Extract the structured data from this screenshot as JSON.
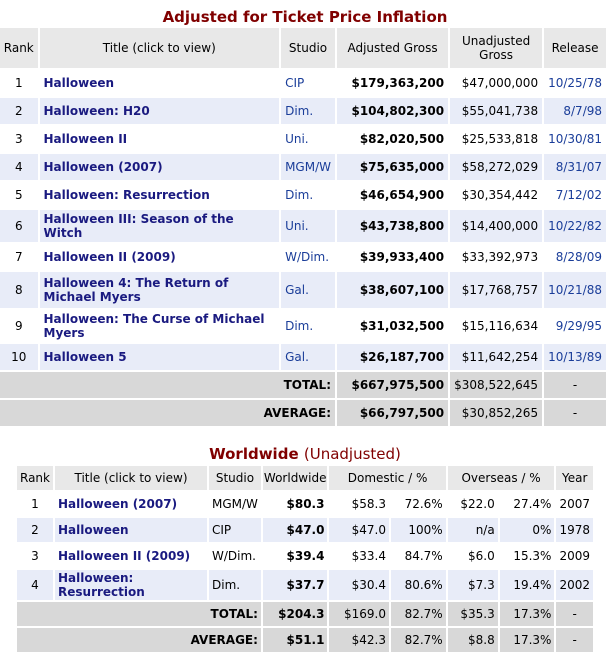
{
  "table1": {
    "title": "Adjusted for Ticket Price Inflation",
    "headers": [
      "Rank",
      "Title (click to view)",
      "Studio",
      "Adjusted Gross",
      "Unadjusted Gross",
      "Release"
    ],
    "rows": [
      {
        "rank": "1",
        "title": "Halloween",
        "studio": "CIP",
        "adjusted": "$179,363,200",
        "unadjusted": "$47,000,000",
        "release": "10/25/78"
      },
      {
        "rank": "2",
        "title": "Halloween: H20",
        "studio": "Dim.",
        "adjusted": "$104,802,300",
        "unadjusted": "$55,041,738",
        "release": "8/7/98"
      },
      {
        "rank": "3",
        "title": "Halloween II",
        "studio": "Uni.",
        "adjusted": "$82,020,500",
        "unadjusted": "$25,533,818",
        "release": "10/30/81"
      },
      {
        "rank": "4",
        "title": "Halloween (2007)",
        "studio": "MGM/W",
        "adjusted": "$75,635,000",
        "unadjusted": "$58,272,029",
        "release": "8/31/07"
      },
      {
        "rank": "5",
        "title": "Halloween: Resurrection",
        "studio": "Dim.",
        "adjusted": "$46,654,900",
        "unadjusted": "$30,354,442",
        "release": "7/12/02"
      },
      {
        "rank": "6",
        "title": "Halloween III: Season of the Witch",
        "studio": "Uni.",
        "adjusted": "$43,738,800",
        "unadjusted": "$14,400,000",
        "release": "10/22/82"
      },
      {
        "rank": "7",
        "title": "Halloween II (2009)",
        "studio": "W/Dim.",
        "adjusted": "$39,933,400",
        "unadjusted": "$33,392,973",
        "release": "8/28/09"
      },
      {
        "rank": "8",
        "title": "Halloween 4: The Return of Michael Myers",
        "studio": "Gal.",
        "adjusted": "$38,607,100",
        "unadjusted": "$17,768,757",
        "release": "10/21/88"
      },
      {
        "rank": "9",
        "title": "Halloween: The Curse of Michael Myers",
        "studio": "Dim.",
        "adjusted": "$31,032,500",
        "unadjusted": "$15,116,634",
        "release": "9/29/95"
      },
      {
        "rank": "10",
        "title": "Halloween 5",
        "studio": "Gal.",
        "adjusted": "$26,187,700",
        "unadjusted": "$11,642,254",
        "release": "10/13/89"
      }
    ],
    "total": {
      "label": "TOTAL:",
      "adjusted": "$667,975,500",
      "unadjusted": "$308,522,645",
      "release": "-"
    },
    "average": {
      "label": "AVERAGE:",
      "adjusted": "$66,797,500",
      "unadjusted": "$30,852,265",
      "release": "-"
    }
  },
  "table2": {
    "title": "Worldwide",
    "subtitle": "(Unadjusted)",
    "headers": [
      "Rank",
      "Title (click to view)",
      "Studio",
      "Worldwide",
      "Domestic / %",
      "Overseas / %",
      "Year"
    ],
    "rows": [
      {
        "rank": "1",
        "title": "Halloween (2007)",
        "studio": "MGM/W",
        "worldwide": "$80.3",
        "domestic": "$58.3",
        "dom_pct": "72.6%",
        "overseas": "$22.0",
        "ovs_pct": "27.4%",
        "year": "2007"
      },
      {
        "rank": "2",
        "title": "Halloween",
        "studio": "CIP",
        "worldwide": "$47.0",
        "domestic": "$47.0",
        "dom_pct": "100%",
        "overseas": "n/a",
        "ovs_pct": "0%",
        "year": "1978"
      },
      {
        "rank": "3",
        "title": "Halloween II (2009)",
        "studio": "W/Dim.",
        "worldwide": "$39.4",
        "domestic": "$33.4",
        "dom_pct": "84.7%",
        "overseas": "$6.0",
        "ovs_pct": "15.3%",
        "year": "2009"
      },
      {
        "rank": "4",
        "title": "Halloween: Resurrection",
        "studio": "Dim.",
        "worldwide": "$37.7",
        "domestic": "$30.4",
        "dom_pct": "80.6%",
        "overseas": "$7.3",
        "ovs_pct": "19.4%",
        "year": "2002"
      }
    ],
    "total": {
      "label": "TOTAL:",
      "worldwide": "$204.3",
      "domestic": "$169.0",
      "dom_pct": "82.7%",
      "overseas": "$35.3",
      "ovs_pct": "17.3%",
      "year": "-"
    },
    "average": {
      "label": "AVERAGE:",
      "worldwide": "$51.1",
      "domestic": "$42.3",
      "dom_pct": "82.7%",
      "overseas": "$8.8",
      "ovs_pct": "17.3%",
      "year": "-"
    }
  }
}
